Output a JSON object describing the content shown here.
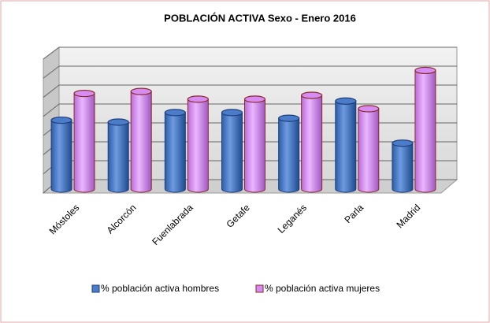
{
  "chart_data": {
    "type": "bar3d",
    "title": "POBLACIÓN ACTIVA Sexo - Enero 2016",
    "categories": [
      "Móstoles",
      "Alcorcón",
      "Fuenlabrada",
      "Getafe",
      "Leganés",
      "Parla",
      "Madrid"
    ],
    "series": [
      {
        "name": "% población activa hombres",
        "color": "#4a7cc9",
        "values": [
          3.6,
          3.5,
          4.0,
          4.0,
          3.7,
          4.6,
          2.4
        ]
      },
      {
        "name": "% población activa mujeres",
        "color": "#d68cf2",
        "values": [
          5.0,
          5.1,
          4.7,
          4.7,
          4.9,
          4.2,
          6.2
        ]
      }
    ],
    "ylim": [
      0,
      7
    ],
    "yticks": [
      0,
      1,
      2,
      3,
      4,
      5,
      6,
      7
    ],
    "grid": true,
    "legend": "bottom"
  }
}
